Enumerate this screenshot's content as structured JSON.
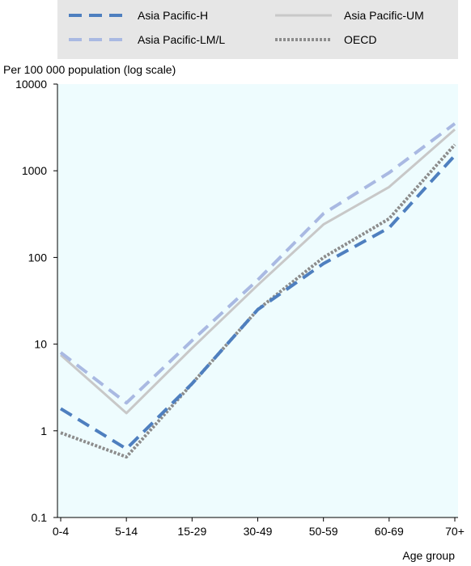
{
  "chart_data": {
    "type": "line",
    "ylabel": "Per 100 000 population (log scale)",
    "xlabel": "Age group",
    "y_scale": "log",
    "ylim": [
      0.1,
      10000
    ],
    "yticks": [
      "0.1",
      "1",
      "10",
      "100",
      "1000",
      "10000"
    ],
    "categories": [
      "0-4",
      "5-14",
      "15-29",
      "30-49",
      "50-59",
      "60-69",
      "70+"
    ],
    "legend_position": "top",
    "grid": false,
    "series": [
      {
        "name": "Asia Pacific-H",
        "values": [
          1.8,
          0.62,
          3.5,
          25,
          85,
          220,
          1500
        ],
        "color": "#4e7fbf",
        "style": "dashed"
      },
      {
        "name": "Asia Pacific-LM/L",
        "values": [
          8,
          2.1,
          11,
          55,
          320,
          950,
          3500
        ],
        "color": "#a9b9e2",
        "style": "dashed"
      },
      {
        "name": "Asia Pacific-UM",
        "values": [
          7.5,
          1.6,
          9,
          48,
          240,
          650,
          3000
        ],
        "color": "#c8c8c8",
        "style": "solid"
      },
      {
        "name": "OECD",
        "values": [
          0.95,
          0.5,
          3.5,
          25,
          100,
          280,
          2000
        ],
        "color": "#8c8c8c",
        "style": "dotted"
      }
    ]
  }
}
